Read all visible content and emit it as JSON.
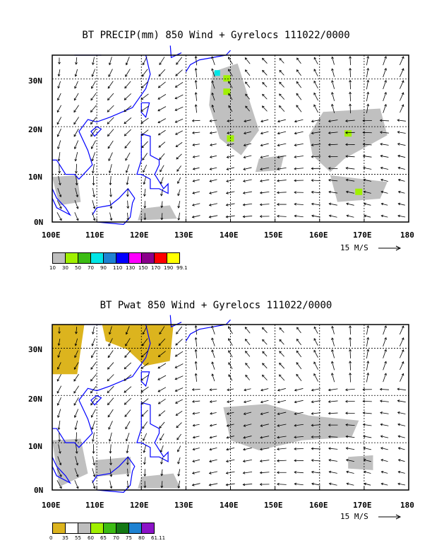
{
  "panels": [
    {
      "title": "BT PRECIP(mm) 850 Wind + Gyrelocs 111022/0000",
      "x_ticks": [
        "100E",
        "110E",
        "120E",
        "130E",
        "140E",
        "150E",
        "160E",
        "170E",
        "180"
      ],
      "y_ticks": [
        "30N",
        "20N",
        "10N",
        "0N"
      ],
      "scale_label": "15 M/S",
      "legend_labels": [
        "10",
        "30",
        "50",
        "70",
        "90",
        "110",
        "130",
        "150",
        "170",
        "190",
        "99.1"
      ],
      "legend_colors": [
        "#bebebe",
        "#a0f000",
        "#3cbc14",
        "#00e6e6",
        "#1e82d2",
        "#0000ff",
        "#ff00ff",
        "#8b008b",
        "#ff0000",
        "#ffff00"
      ],
      "fill_color": "#c0c0c0",
      "accent_color": "#a0f000"
    },
    {
      "title": "BT Pwat 850 Wind + Gyrelocs 111022/0000",
      "x_ticks": [
        "100E",
        "110E",
        "120E",
        "130E",
        "140E",
        "150E",
        "160E",
        "170E",
        "180"
      ],
      "y_ticks": [
        "30N",
        "20N",
        "10N",
        "0N"
      ],
      "scale_label": "15 M/S",
      "legend_labels": [
        "0",
        "35",
        "55",
        "60",
        "65",
        "70",
        "75",
        "80",
        "61.11"
      ],
      "legend_colors": [
        "#dcb41e",
        "#ffffff",
        "#bebebe",
        "#a0f000",
        "#3cbc14",
        "#147814",
        "#1e82d2",
        "#8c14c8"
      ],
      "fill_color": "#c0c0c0",
      "accent_color": "#dcb41e"
    }
  ],
  "colors": {
    "coast": "#0000ff",
    "frame": "#000000"
  }
}
